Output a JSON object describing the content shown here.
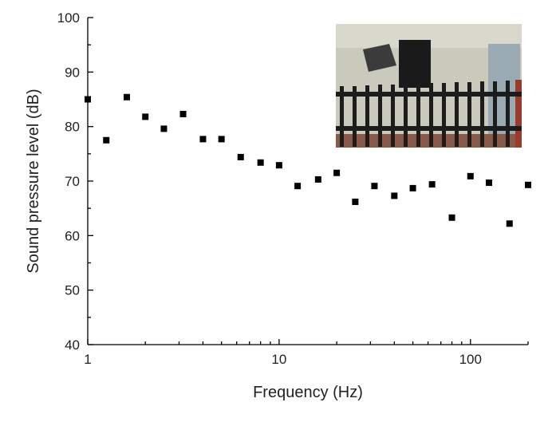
{
  "chart_data": {
    "type": "scatter",
    "xlabel": "Frequency (Hz)",
    "ylabel": "Sound pressure level (dB)",
    "xscale": "log",
    "x": [
      1,
      1.25,
      1.6,
      2,
      2.5,
      3.15,
      4,
      5,
      6.3,
      8,
      10,
      12.5,
      16,
      20,
      25,
      31.5,
      40,
      50,
      63,
      80,
      100,
      125,
      160,
      200
    ],
    "series": [
      {
        "color": "#000000",
        "values": [
          85,
          77.5,
          85.4,
          81.8,
          79.6,
          82.3,
          77.7,
          77.7,
          74.4,
          73.4,
          72.9,
          69.1,
          70.3,
          71.5,
          66.2,
          69.1,
          67.3,
          68.7,
          69.4,
          63.3,
          70.9,
          69.7,
          62.2,
          69.3
        ]
      }
    ],
    "xlim": [
      1,
      200
    ],
    "xticks": [
      1,
      10,
      100
    ],
    "ylim": [
      40,
      100
    ],
    "yticks": [
      40,
      50,
      60,
      70,
      80,
      90,
      100
    ]
  }
}
